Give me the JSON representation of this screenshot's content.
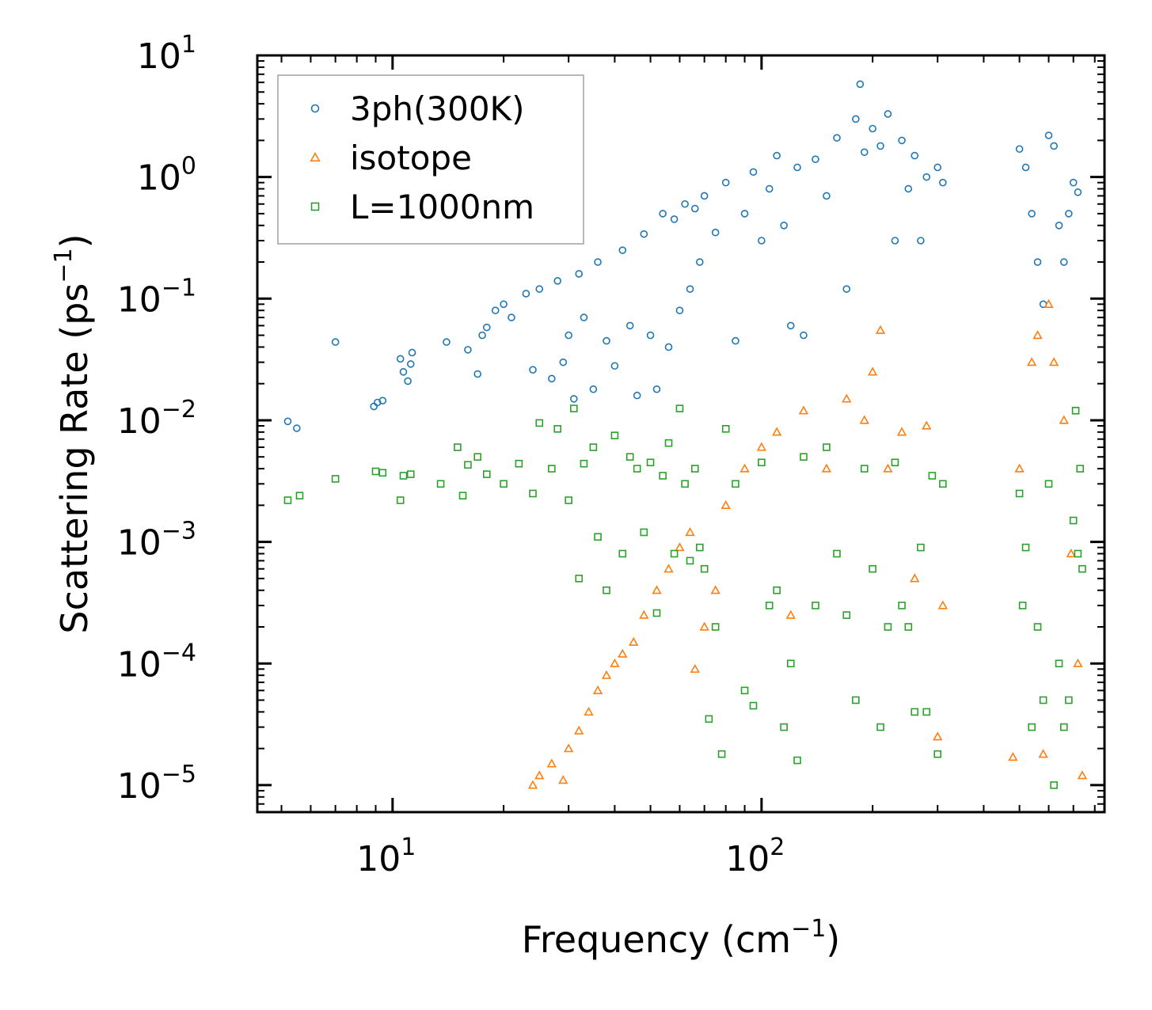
{
  "chart_data": {
    "type": "scatter",
    "title": "",
    "xlabel": "Frequency (cm",
    "xlabel_sup": "−1",
    "xlabel_close": ")",
    "ylabel": "Scattering Rate (ps",
    "ylabel_sup": "−1",
    "ylabel_close": ")",
    "xscale": "log",
    "yscale": "log",
    "xlim": [
      4.3,
      850
    ],
    "ylim": [
      6e-06,
      10
    ],
    "grid": false,
    "legend_position": "top-left",
    "x_ticks": [
      {
        "value": 10,
        "base": "10",
        "exp": "1"
      },
      {
        "value": 100,
        "base": "10",
        "exp": "2"
      }
    ],
    "y_ticks": [
      {
        "value": 10,
        "base": "10",
        "exp": "1"
      },
      {
        "value": 1,
        "base": "10",
        "exp": "0"
      },
      {
        "value": 0.1,
        "base": "10",
        "exp": "−1"
      },
      {
        "value": 0.01,
        "base": "10",
        "exp": "−2"
      },
      {
        "value": 0.001,
        "base": "10",
        "exp": "−3"
      },
      {
        "value": 0.0001,
        "base": "10",
        "exp": "−4"
      },
      {
        "value": 1e-05,
        "base": "10",
        "exp": "−5"
      }
    ],
    "series": [
      {
        "name": "3ph(300K)",
        "marker": "circle",
        "color": "#1f77b4",
        "points": [
          [
            5.2,
            0.0098
          ],
          [
            5.5,
            0.0086
          ],
          [
            7.0,
            0.044
          ],
          [
            8.9,
            0.013
          ],
          [
            9.1,
            0.014
          ],
          [
            9.4,
            0.0145
          ],
          [
            10.5,
            0.032
          ],
          [
            10.7,
            0.025
          ],
          [
            11.0,
            0.021
          ],
          [
            11.2,
            0.029
          ],
          [
            11.3,
            0.036
          ],
          [
            14.0,
            0.044
          ],
          [
            16.0,
            0.038
          ],
          [
            17.0,
            0.024
          ],
          [
            17.5,
            0.05
          ],
          [
            18.0,
            0.058
          ],
          [
            19.0,
            0.08
          ],
          [
            20.0,
            0.09
          ],
          [
            21.0,
            0.07
          ],
          [
            23.0,
            0.11
          ],
          [
            24.0,
            0.026
          ],
          [
            25.0,
            0.12
          ],
          [
            27.0,
            0.022
          ],
          [
            28.0,
            0.14
          ],
          [
            29.0,
            0.03
          ],
          [
            30.0,
            0.05
          ],
          [
            31.0,
            0.015
          ],
          [
            32.0,
            0.16
          ],
          [
            33.0,
            0.07
          ],
          [
            35.0,
            0.018
          ],
          [
            36.0,
            0.2
          ],
          [
            38.0,
            0.045
          ],
          [
            40.0,
            0.028
          ],
          [
            42.0,
            0.25
          ],
          [
            44.0,
            0.06
          ],
          [
            46.0,
            0.016
          ],
          [
            48.0,
            0.34
          ],
          [
            50.0,
            0.05
          ],
          [
            52.0,
            0.018
          ],
          [
            54.0,
            0.5
          ],
          [
            56.0,
            0.04
          ],
          [
            58.0,
            0.45
          ],
          [
            60.0,
            0.08
          ],
          [
            62.0,
            0.6
          ],
          [
            64.0,
            0.12
          ],
          [
            66.0,
            0.55
          ],
          [
            68.0,
            0.2
          ],
          [
            70.0,
            0.7
          ],
          [
            75.0,
            0.35
          ],
          [
            80.0,
            0.9
          ],
          [
            85.0,
            0.045
          ],
          [
            90.0,
            0.5
          ],
          [
            95.0,
            1.1
          ],
          [
            100.0,
            0.3
          ],
          [
            105.0,
            0.8
          ],
          [
            110.0,
            1.5
          ],
          [
            115.0,
            0.4
          ],
          [
            120.0,
            0.06
          ],
          [
            125.0,
            1.2
          ],
          [
            130.0,
            0.05
          ],
          [
            140.0,
            1.4
          ],
          [
            150.0,
            0.7
          ],
          [
            160.0,
            2.1
          ],
          [
            170.0,
            0.12
          ],
          [
            180.0,
            3.0
          ],
          [
            185.0,
            5.8
          ],
          [
            190.0,
            1.6
          ],
          [
            200.0,
            2.5
          ],
          [
            210.0,
            1.8
          ],
          [
            220.0,
            3.3
          ],
          [
            230.0,
            0.3
          ],
          [
            240.0,
            2.0
          ],
          [
            250.0,
            0.8
          ],
          [
            260.0,
            1.5
          ],
          [
            270.0,
            0.3
          ],
          [
            280.0,
            1.0
          ],
          [
            300.0,
            1.2
          ],
          [
            310.0,
            0.9
          ],
          [
            500.0,
            1.7
          ],
          [
            520.0,
            1.2
          ],
          [
            540.0,
            0.5
          ],
          [
            560.0,
            0.2
          ],
          [
            580.0,
            0.09
          ],
          [
            600.0,
            2.2
          ],
          [
            620.0,
            1.8
          ],
          [
            640.0,
            0.4
          ],
          [
            660.0,
            0.2
          ],
          [
            680.0,
            0.5
          ],
          [
            700.0,
            0.9
          ],
          [
            720.0,
            0.75
          ]
        ]
      },
      {
        "name": "isotope",
        "marker": "triangle",
        "color": "#ff7f0e",
        "points": [
          [
            24.0,
            1e-05
          ],
          [
            25.0,
            1.2e-05
          ],
          [
            27.0,
            1.5e-05
          ],
          [
            29.0,
            1.1e-05
          ],
          [
            30.0,
            2e-05
          ],
          [
            32.0,
            2.8e-05
          ],
          [
            34.0,
            4e-05
          ],
          [
            36.0,
            6e-05
          ],
          [
            38.0,
            8e-05
          ],
          [
            40.0,
            0.0001
          ],
          [
            42.0,
            0.00012
          ],
          [
            45.0,
            0.00015
          ],
          [
            48.0,
            0.00025
          ],
          [
            52.0,
            0.0004
          ],
          [
            56.0,
            0.0006
          ],
          [
            60.0,
            0.0009
          ],
          [
            64.0,
            0.0012
          ],
          [
            66.0,
            9e-05
          ],
          [
            70.0,
            0.0002
          ],
          [
            75.0,
            0.0004
          ],
          [
            80.0,
            0.002
          ],
          [
            90.0,
            0.004
          ],
          [
            100.0,
            0.006
          ],
          [
            110.0,
            0.008
          ],
          [
            120.0,
            0.00025
          ],
          [
            130.0,
            0.012
          ],
          [
            150.0,
            0.004
          ],
          [
            170.0,
            0.015
          ],
          [
            190.0,
            0.01
          ],
          [
            200.0,
            0.025
          ],
          [
            210.0,
            0.055
          ],
          [
            220.0,
            0.004
          ],
          [
            240.0,
            0.008
          ],
          [
            260.0,
            0.0005
          ],
          [
            280.0,
            0.009
          ],
          [
            300.0,
            2.5e-05
          ],
          [
            310.0,
            0.0003
          ],
          [
            480.0,
            1.7e-05
          ],
          [
            500.0,
            0.004
          ],
          [
            540.0,
            0.03
          ],
          [
            560.0,
            0.05
          ],
          [
            580.0,
            1.8e-05
          ],
          [
            600.0,
            0.09
          ],
          [
            620.0,
            0.03
          ],
          [
            660.0,
            0.01
          ],
          [
            690.0,
            0.0008
          ],
          [
            720.0,
            0.0001
          ],
          [
            740.0,
            1.2e-05
          ]
        ]
      },
      {
        "name": "L=1000nm",
        "marker": "square",
        "color": "#2ca02c",
        "points": [
          [
            5.2,
            0.0022
          ],
          [
            5.6,
            0.0024
          ],
          [
            7.0,
            0.0033
          ],
          [
            9.0,
            0.0038
          ],
          [
            9.4,
            0.0037
          ],
          [
            10.5,
            0.0022
          ],
          [
            10.7,
            0.0035
          ],
          [
            11.2,
            0.0036
          ],
          [
            13.5,
            0.003
          ],
          [
            15.0,
            0.006
          ],
          [
            15.5,
            0.0024
          ],
          [
            16.0,
            0.0043
          ],
          [
            17.0,
            0.005
          ],
          [
            18.0,
            0.0036
          ],
          [
            20.0,
            0.003
          ],
          [
            22.0,
            0.0044
          ],
          [
            24.0,
            0.0025
          ],
          [
            25.0,
            0.0095
          ],
          [
            27.0,
            0.004
          ],
          [
            28.0,
            0.0085
          ],
          [
            30.0,
            0.0022
          ],
          [
            31.0,
            0.0125
          ],
          [
            32.0,
            0.0005
          ],
          [
            33.0,
            0.0044
          ],
          [
            35.0,
            0.006
          ],
          [
            36.0,
            0.0011
          ],
          [
            38.0,
            0.0004
          ],
          [
            40.0,
            0.0075
          ],
          [
            42.0,
            0.0008
          ],
          [
            44.0,
            0.005
          ],
          [
            46.0,
            0.004
          ],
          [
            48.0,
            0.0012
          ],
          [
            50.0,
            0.0045
          ],
          [
            52.0,
            0.00026
          ],
          [
            54.0,
            0.0035
          ],
          [
            56.0,
            0.0065
          ],
          [
            58.0,
            0.0008
          ],
          [
            60.0,
            0.0125
          ],
          [
            62.0,
            0.003
          ],
          [
            64.0,
            0.0007
          ],
          [
            66.0,
            0.004
          ],
          [
            68.0,
            0.0009
          ],
          [
            70.0,
            0.0006
          ],
          [
            72.0,
            3.5e-05
          ],
          [
            75.0,
            0.0002
          ],
          [
            78.0,
            1.8e-05
          ],
          [
            80.0,
            0.0085
          ],
          [
            85.0,
            0.003
          ],
          [
            90.0,
            6e-05
          ],
          [
            95.0,
            4.5e-05
          ],
          [
            100.0,
            0.0045
          ],
          [
            105.0,
            0.0003
          ],
          [
            110.0,
            0.0004
          ],
          [
            115.0,
            3e-05
          ],
          [
            120.0,
            0.0001
          ],
          [
            125.0,
            1.6e-05
          ],
          [
            130.0,
            0.005
          ],
          [
            140.0,
            0.0003
          ],
          [
            150.0,
            0.006
          ],
          [
            160.0,
            0.0008
          ],
          [
            170.0,
            0.00025
          ],
          [
            180.0,
            5e-05
          ],
          [
            190.0,
            0.004
          ],
          [
            200.0,
            0.0006
          ],
          [
            210.0,
            3e-05
          ],
          [
            220.0,
            0.0002
          ],
          [
            230.0,
            0.0045
          ],
          [
            240.0,
            0.0003
          ],
          [
            250.0,
            0.0002
          ],
          [
            260.0,
            4e-05
          ],
          [
            270.0,
            0.0009
          ],
          [
            280.0,
            4e-05
          ],
          [
            290.0,
            0.0035
          ],
          [
            300.0,
            1.8e-05
          ],
          [
            310.0,
            0.003
          ],
          [
            500.0,
            0.0025
          ],
          [
            510.0,
            0.0003
          ],
          [
            520.0,
            0.0009
          ],
          [
            540.0,
            3e-05
          ],
          [
            560.0,
            0.0002
          ],
          [
            580.0,
            5e-05
          ],
          [
            600.0,
            0.003
          ],
          [
            620.0,
            1e-05
          ],
          [
            640.0,
            0.0001
          ],
          [
            660.0,
            3e-05
          ],
          [
            680.0,
            5e-05
          ],
          [
            700.0,
            0.0015
          ],
          [
            710.0,
            0.012
          ],
          [
            720.0,
            0.0008
          ],
          [
            730.0,
            0.004
          ],
          [
            740.0,
            0.0006
          ]
        ]
      }
    ]
  }
}
